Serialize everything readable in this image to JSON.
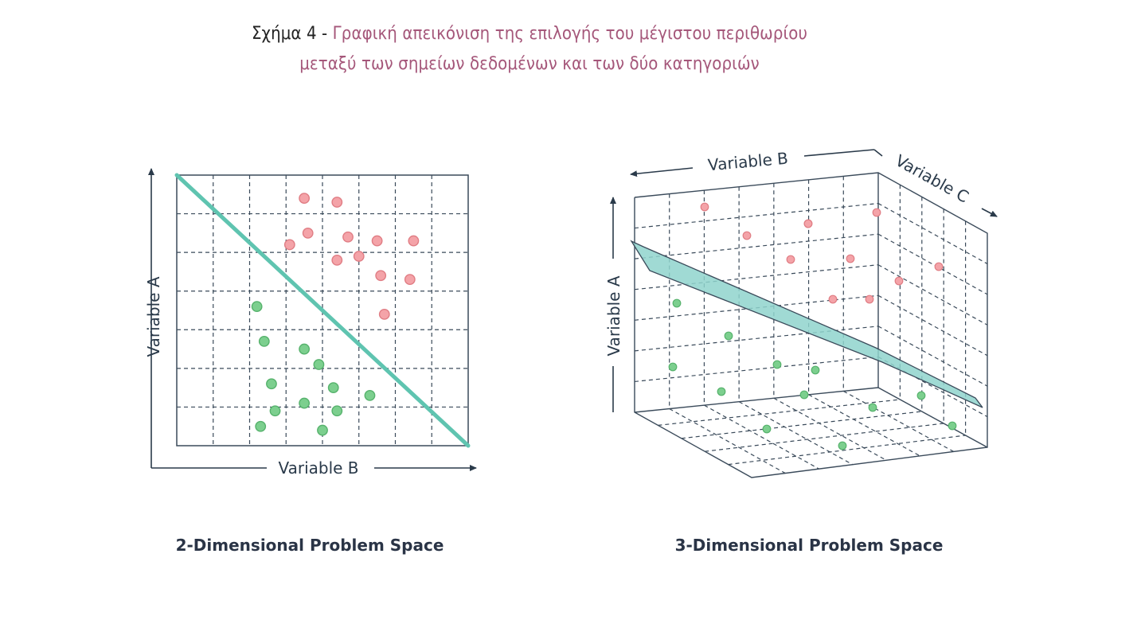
{
  "caption": {
    "figure_label": "Σχήμα 4 -",
    "line1": "Γραφική απεικόνιση της επιλογής του μέγιστου περιθωρίου",
    "line2": "μεταξύ των σημείων δεδομένων και των δύο κατηγοριών"
  },
  "colors": {
    "red_point": "#f4a3a8",
    "green_point": "#7ccf8e",
    "separator": "#5fc4b0",
    "plane_fill": "#8fd3cc",
    "grid": "#3a4a5a"
  },
  "chart_data": [
    {
      "type": "scatter",
      "title": "2-Dimensional Problem Space",
      "xlabel": "Variable B",
      "ylabel": "Variable A",
      "xlim": [
        0,
        8
      ],
      "ylim": [
        0,
        7
      ],
      "grid": true,
      "separator_line": {
        "from": [
          0,
          7
        ],
        "to": [
          8,
          0
        ]
      },
      "series": [
        {
          "name": "red",
          "points": [
            [
              3.5,
              6.4
            ],
            [
              4.4,
              6.3
            ],
            [
              3.6,
              5.5
            ],
            [
              4.7,
              5.4
            ],
            [
              5.5,
              5.3
            ],
            [
              6.5,
              5.3
            ],
            [
              3.1,
              5.2
            ],
            [
              4.4,
              4.8
            ],
            [
              5.0,
              4.9
            ],
            [
              5.6,
              4.4
            ],
            [
              6.4,
              4.3
            ],
            [
              5.7,
              3.4
            ]
          ]
        },
        {
          "name": "green",
          "points": [
            [
              2.2,
              3.6
            ],
            [
              2.4,
              2.7
            ],
            [
              3.5,
              2.5
            ],
            [
              3.9,
              2.1
            ],
            [
              2.6,
              1.6
            ],
            [
              4.3,
              1.5
            ],
            [
              5.3,
              1.3
            ],
            [
              2.7,
              0.9
            ],
            [
              3.5,
              1.1
            ],
            [
              4.4,
              0.9
            ],
            [
              2.3,
              0.5
            ],
            [
              4.0,
              0.4
            ]
          ]
        }
      ]
    },
    {
      "type": "scatter",
      "title": "3-Dimensional Problem Space",
      "xlabel": "Variable B",
      "ylabel": "Variable A",
      "zlabel": "Variable C",
      "grid": true,
      "separator": "plane",
      "series": [
        {
          "name": "red",
          "count": 11
        },
        {
          "name": "green",
          "count": 12
        }
      ]
    }
  ]
}
